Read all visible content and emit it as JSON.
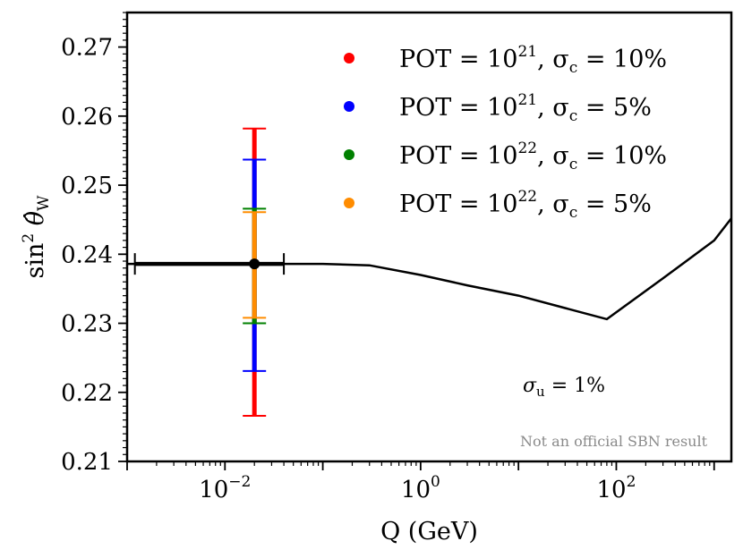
{
  "chart_data": {
    "type": "scatter",
    "title": "",
    "xlabel": "Q (GeV)",
    "ylabel_parts": {
      "main": "sin",
      "sup": "2",
      "theta": "θ̂",
      "sub": "W"
    },
    "xscale": "log",
    "xlim": [
      0.001,
      1500
    ],
    "ylim": [
      0.21,
      0.275
    ],
    "x_ticks": [
      {
        "value": 0.01,
        "base": "10",
        "exp": "−2"
      },
      {
        "value": 1,
        "base": "10",
        "exp": "0"
      },
      {
        "value": 100,
        "base": "10",
        "exp": "2"
      }
    ],
    "y_ticks": [
      "0.21",
      "0.22",
      "0.23",
      "0.24",
      "0.25",
      "0.26",
      "0.27"
    ],
    "grid": false,
    "legend_placement": "top-right",
    "running_curve": {
      "color": "#000000",
      "x": [
        0.001,
        0.01,
        0.1,
        0.3,
        1,
        3,
        10,
        30,
        80,
        300,
        1000,
        1500
      ],
      "y": [
        0.2386,
        0.2386,
        0.2386,
        0.2384,
        0.237,
        0.2355,
        0.234,
        0.2322,
        0.2306,
        0.2365,
        0.242,
        0.2452
      ]
    },
    "central_point": {
      "x": 0.02,
      "y": 0.2386,
      "x_err_low": 0.0012,
      "x_err_high": 0.04,
      "color": "#000000"
    },
    "series": [
      {
        "name_parts": {
          "pot": "POT = 10",
          "pot_exp": "21",
          "sigma": ", σ",
          "sigma_sub": "c",
          "pct": " = 10%"
        },
        "color": "#ff0000",
        "x": 0.02,
        "y": 0.2386,
        "y_low": 0.2166,
        "y_high": 0.2582
      },
      {
        "name_parts": {
          "pot": "POT = 10",
          "pot_exp": "21",
          "sigma": ", σ",
          "sigma_sub": "c",
          "pct": " = 5%"
        },
        "color": "#0000ff",
        "x": 0.02,
        "y": 0.2386,
        "y_low": 0.2231,
        "y_high": 0.2537
      },
      {
        "name_parts": {
          "pot": "POT = 10",
          "pot_exp": "22",
          "sigma": ", σ",
          "sigma_sub": "c",
          "pct": " = 10%"
        },
        "color": "#008000",
        "x": 0.02,
        "y": 0.2386,
        "y_low": 0.23,
        "y_high": 0.2466
      },
      {
        "name_parts": {
          "pot": "POT = 10",
          "pot_exp": "22",
          "sigma": ", σ",
          "sigma_sub": "c",
          "pct": " = 5%"
        },
        "color": "#ff8c00",
        "x": 0.02,
        "y": 0.2386,
        "y_low": 0.2308,
        "y_high": 0.2461
      }
    ],
    "annotation": {
      "sigma": "σ",
      "sub": "u",
      "text": " = 1%"
    },
    "watermark": "Not an official SBN result"
  }
}
